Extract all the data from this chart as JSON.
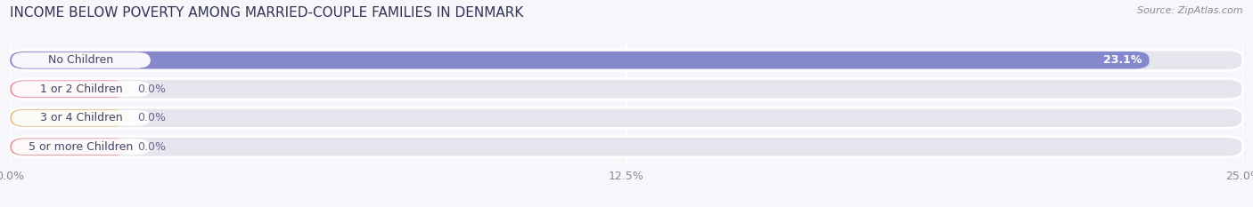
{
  "title": "INCOME BELOW POVERTY AMONG MARRIED-COUPLE FAMILIES IN DENMARK",
  "source": "Source: ZipAtlas.com",
  "categories": [
    "No Children",
    "1 or 2 Children",
    "3 or 4 Children",
    "5 or more Children"
  ],
  "values": [
    23.1,
    0.0,
    0.0,
    0.0
  ],
  "bar_colors": [
    "#7b7ec8",
    "#e8889a",
    "#e8b87a",
    "#e89090"
  ],
  "xlim": [
    0,
    25.0
  ],
  "xticks": [
    0.0,
    12.5,
    25.0
  ],
  "xticklabels": [
    "0.0%",
    "12.5%",
    "25.0%"
  ],
  "value_labels": [
    "23.1%",
    "0.0%",
    "0.0%",
    "0.0%"
  ],
  "background_color": "#f7f7fb",
  "bar_track_color": "#e5e5ee",
  "label_box_color": "#ffffff",
  "title_fontsize": 11,
  "tick_fontsize": 9,
  "label_fontsize": 9,
  "value_fontsize": 9
}
